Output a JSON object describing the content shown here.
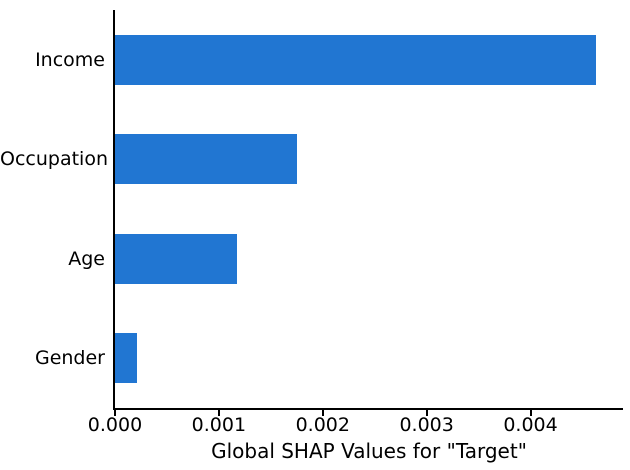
{
  "chart_data": {
    "type": "bar",
    "orientation": "horizontal",
    "title": "",
    "xlabel": "Global SHAP Values for \"Target\"",
    "ylabel": "",
    "categories": [
      "Income",
      "Occupation",
      "Age",
      "Gender"
    ],
    "values": [
      0.00463,
      0.00175,
      0.00117,
      0.00021
    ],
    "xlim": [
      0,
      0.00489
    ],
    "xticks": [
      0,
      0.001,
      0.002,
      0.003,
      0.004
    ],
    "xtick_labels": [
      "0.000",
      "0.001",
      "0.002",
      "0.003",
      "0.004"
    ],
    "bar_height_fraction": 0.5,
    "grid": false,
    "legend": null,
    "colors": {
      "bar": "#2176D2",
      "spine": "#000000",
      "text": "#000000",
      "background": "#ffffff"
    }
  }
}
